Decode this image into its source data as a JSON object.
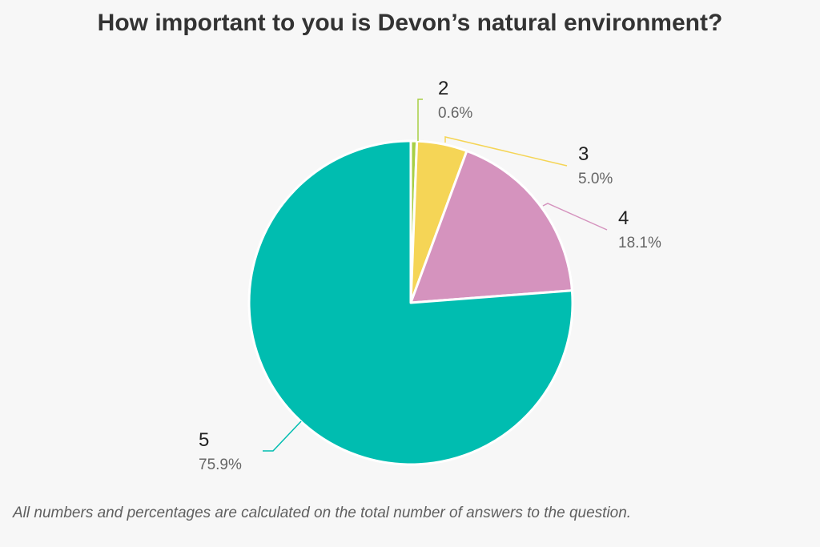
{
  "title": "How important to you is Devon’s natural environment?",
  "footnote": "All numbers and percentages are calculated on the total number of answers to the question.",
  "chart_data": {
    "type": "pie",
    "title": "How important to you is Devon’s natural environment?",
    "slices": [
      {
        "label": "2",
        "value": 0.6,
        "value_label": "0.6%",
        "color": "#a8cf45"
      },
      {
        "label": "3",
        "value": 5.0,
        "value_label": "5.0%",
        "color": "#f5d556"
      },
      {
        "label": "4",
        "value": 18.1,
        "value_label": "18.1%",
        "color": "#d593be"
      },
      {
        "label": "5",
        "value": 75.9,
        "value_label": "75.9%",
        "color": "#00bdb0"
      }
    ],
    "start": "top",
    "direction": "clockwise",
    "slice_border_color": "#ffffff",
    "label_color": "#222222",
    "value_label_color": "#666666"
  }
}
